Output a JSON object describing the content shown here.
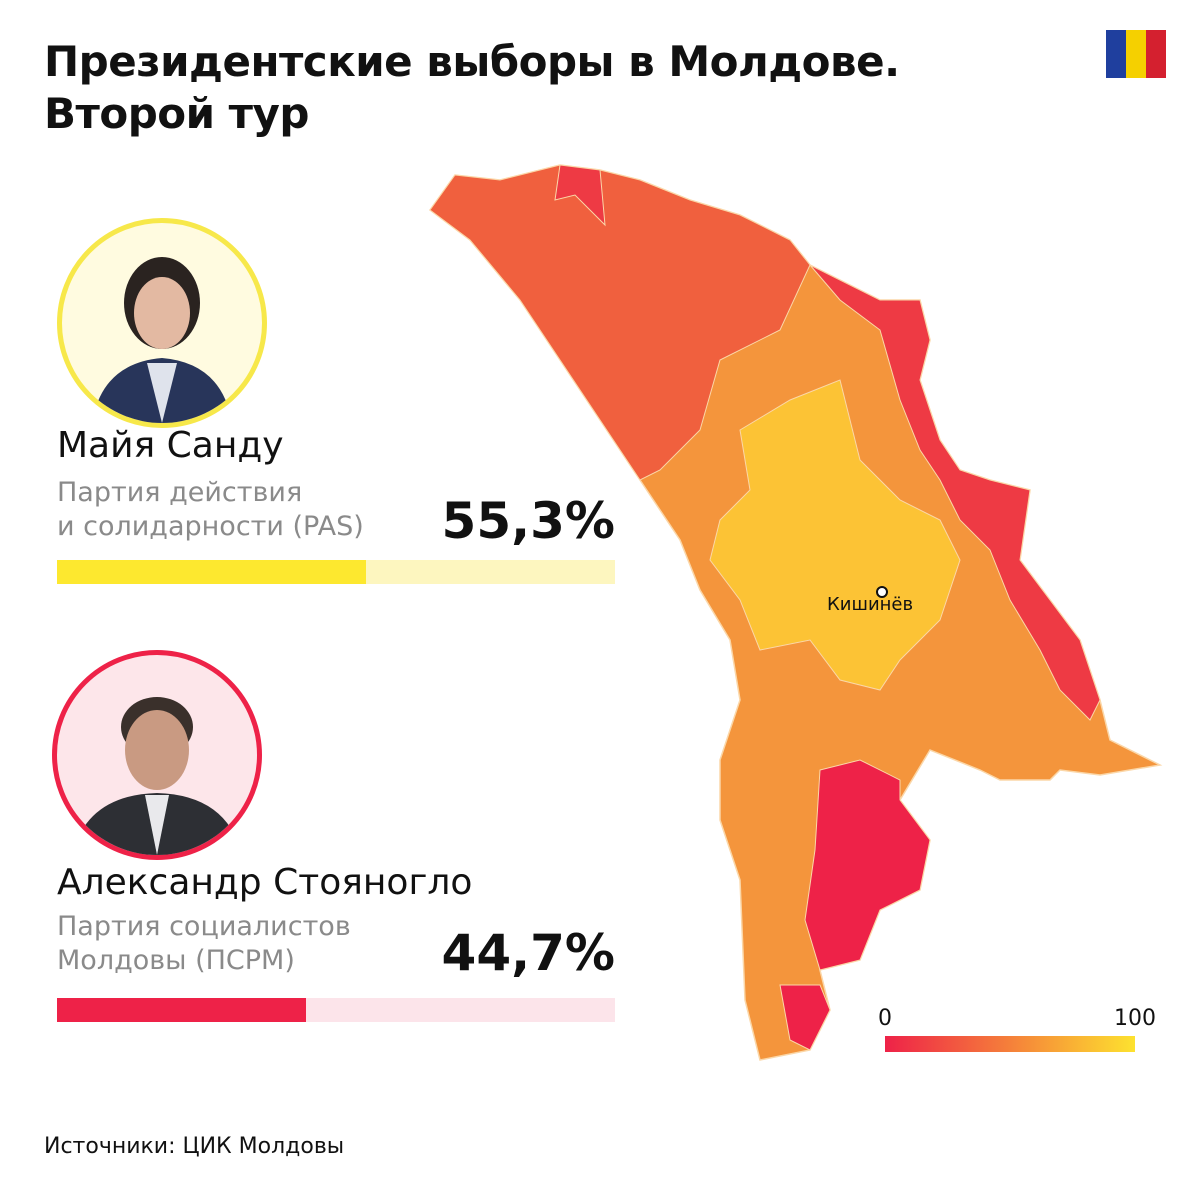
{
  "title": {
    "line1": "Президентские выборы в Молдове.",
    "line2": "Второй тур"
  },
  "flag": {
    "colors": [
      "#1f3f9e",
      "#f5d000",
      "#d4202f"
    ]
  },
  "candidates": [
    {
      "name": "Майя Санду",
      "party_line1": "Партия действия",
      "party_line2": "и солидарности (PAS)",
      "percent_label": "55,3%",
      "percent": 55.3,
      "color": "#fde82f",
      "track": "#fdf6bf",
      "ring": "#f7e84a"
    },
    {
      "name": "Александр Стояногло",
      "party_line1": "Партия социалистов",
      "party_line2": "Молдовы (ПСРМ)",
      "percent_label": "44,7%",
      "percent": 44.7,
      "color": "#ee2248",
      "track": "#fce4ea",
      "ring": "#ee2248"
    }
  ],
  "map": {
    "city": "Кишинёв",
    "legend_min": "0",
    "legend_max": "100",
    "scale_colors": [
      "#ee2248",
      "#f5803a",
      "#fde22f"
    ]
  },
  "source": "Источники: ЦИК Молдовы"
}
